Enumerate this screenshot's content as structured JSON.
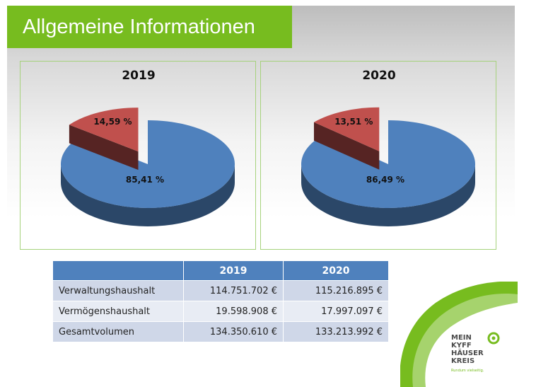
{
  "header": {
    "title": "Allgemeine Informationen"
  },
  "chart_data": [
    {
      "type": "pie",
      "title": "2019",
      "slices": [
        {
          "label": "85,41 %",
          "value": 85.41,
          "color": "#4f81bd"
        },
        {
          "label": "14,59 %",
          "value": 14.59,
          "color": "#c0504d"
        }
      ]
    },
    {
      "type": "pie",
      "title": "2020",
      "slices": [
        {
          "label": "86,49 %",
          "value": 86.49,
          "color": "#4f81bd"
        },
        {
          "label": "13,51 %",
          "value": 13.51,
          "color": "#c0504d"
        }
      ]
    }
  ],
  "table": {
    "columns": [
      "",
      "2019",
      "2020"
    ],
    "rows": [
      {
        "label": "Verwaltungshaushalt",
        "v2019": "114.751.702 €",
        "v2020": "115.216.895 €"
      },
      {
        "label": "Vermögenshaushalt",
        "v2019": "19.598.908 €",
        "v2020": "17.997.097 €"
      },
      {
        "label": "Gesamtvolumen",
        "v2019": "134.350.610 €",
        "v2020": "133.213.992 €"
      }
    ]
  },
  "logo": {
    "lines": [
      "MEIN",
      "KYFF",
      "HÄUSER",
      "KREIS"
    ],
    "tagline": "Rundum vielseitig.",
    "color": "#77bc1f"
  },
  "colors": {
    "accent": "#77bc1f",
    "blue": "#4f81bd",
    "red": "#c0504d"
  }
}
